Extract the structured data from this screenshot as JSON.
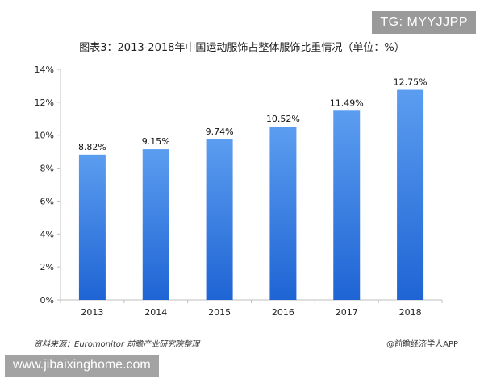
{
  "watermarks": {
    "tg": "TG: MYYJJPP",
    "site": "www.jibaixinghome.com"
  },
  "footer": {
    "source": "资料来源：Euromonitor 前瞻产业研究院整理",
    "brand": "@前瞻经济学人APP"
  },
  "colors": {
    "bar_top": "#5b9df0",
    "bar_bottom": "#1f64d4",
    "axis": "#bfbfbf"
  },
  "chart_data": {
    "type": "bar",
    "title": "图表3：2013-2018年中国运动服饰占整体服饰比重情况（单位：%）",
    "categories": [
      "2013",
      "2014",
      "2015",
      "2016",
      "2017",
      "2018"
    ],
    "values": [
      8.82,
      9.15,
      9.74,
      10.52,
      11.49,
      12.75
    ],
    "data_labels": [
      "8.82%",
      "9.15%",
      "9.74%",
      "10.52%",
      "11.49%",
      "12.75%"
    ],
    "yticks": [
      "0%",
      "2%",
      "4%",
      "6%",
      "8%",
      "10%",
      "12%",
      "14%"
    ],
    "ylim": [
      0,
      14
    ],
    "grid": false,
    "xlabel": "",
    "ylabel": ""
  }
}
